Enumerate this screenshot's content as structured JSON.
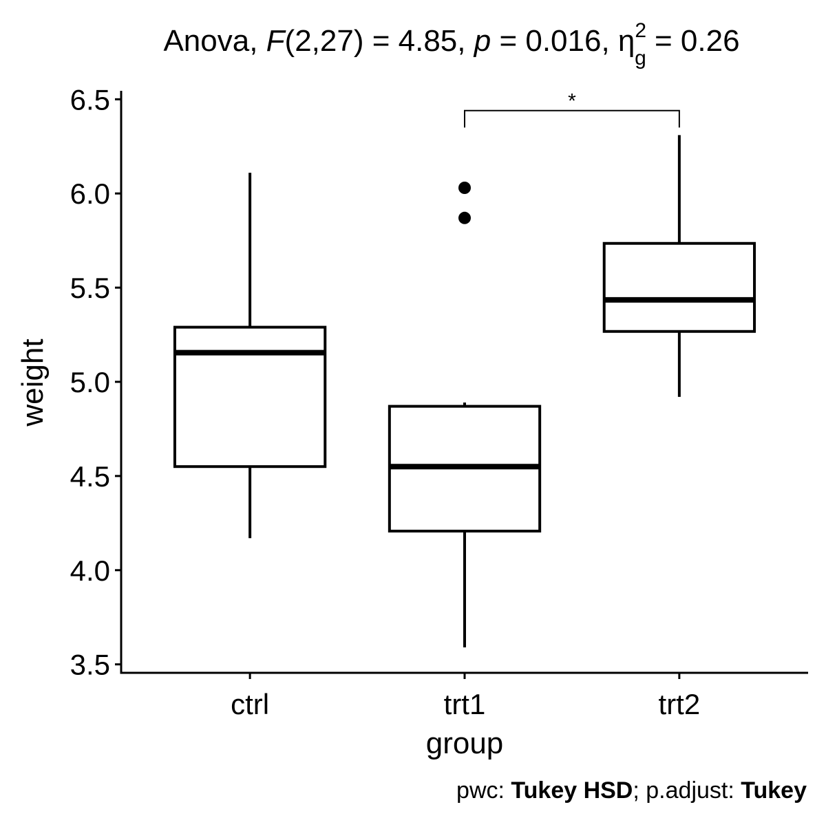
{
  "chart_data": {
    "type": "boxplot",
    "title": {
      "prefix": "Anova, ",
      "f_symbol": "F",
      "df": "(2,27)",
      "f_value": " = 4.85, ",
      "p_symbol": "p",
      "p_value": " = 0.016, ",
      "eta_symbol": "η",
      "eta_sup": "2",
      "eta_sub": "g",
      "eta_value": " = 0.26"
    },
    "xlabel": "group",
    "ylabel": "weight",
    "ylim": [
      3.455,
      6.545
    ],
    "yticks": [
      {
        "value": 3.5,
        "label": "3.5"
      },
      {
        "value": 4.0,
        "label": "4.0"
      },
      {
        "value": 4.5,
        "label": "4.5"
      },
      {
        "value": 5.0,
        "label": "5.0"
      },
      {
        "value": 5.5,
        "label": "5.5"
      },
      {
        "value": 6.0,
        "label": "6.0"
      },
      {
        "value": 6.5,
        "label": "6.5"
      }
    ],
    "categories": [
      "ctrl",
      "trt1",
      "trt2"
    ],
    "boxes": [
      {
        "group": "ctrl",
        "whisker_low": 4.17,
        "q1": 4.55,
        "median": 5.155,
        "q3": 5.29,
        "whisker_high": 6.11,
        "outliers": []
      },
      {
        "group": "trt1",
        "whisker_low": 3.59,
        "q1": 4.2075,
        "median": 4.55,
        "q3": 4.87,
        "whisker_high": 4.89,
        "outliers": [
          6.03,
          5.87
        ]
      },
      {
        "group": "trt2",
        "whisker_low": 4.92,
        "q1": 5.2675,
        "median": 5.435,
        "q3": 5.735,
        "whisker_high": 6.31,
        "outliers": []
      }
    ],
    "significance": [
      {
        "from": "trt1",
        "to": "trt2",
        "label": "*",
        "y": 6.44,
        "tip": 0.09
      }
    ],
    "grid": false,
    "legend": "none",
    "caption": {
      "part1": "pwc: ",
      "part2": "Tukey HSD",
      "part3": "; p.adjust: ",
      "part4": "Tukey"
    },
    "colors": {
      "box_fill": "#ffffff",
      "stroke": "#000000",
      "background": "#ffffff"
    }
  }
}
